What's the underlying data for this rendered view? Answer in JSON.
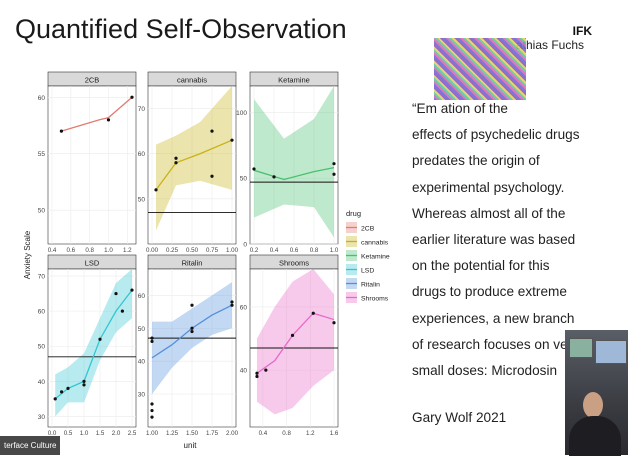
{
  "slide": {
    "title": "Quantified Self-Observation",
    "org": "IFK",
    "author": "athias Fuchs",
    "quote": "“Em ation of the\neffects of psychedelic drugs\npredates the origin of\nexperimental psychology.\nWhereas almost all of the\nearlier literature was based\non the potential for this\ndrugs to produce extreme\nexperiences, a new branch\nof research focuses on very\nsmall doses: Microdosin",
    "attribution": "Gary Wolf 2021",
    "overlay_label": "terface Culture"
  },
  "chart_data": {
    "type": "line",
    "xlabel": "unit",
    "ylabel": "Anxiety Scale",
    "legend": {
      "title": "drug",
      "position": "right",
      "entries": [
        "2CB",
        "cannabis",
        "Ketamine",
        "LSD",
        "Ritalin",
        "Shrooms"
      ]
    },
    "panels": [
      {
        "name": "2CB",
        "color": "#e27a72",
        "xlim": [
          0.4,
          1.25
        ],
        "ylim": [
          47,
          61
        ],
        "xticks": [
          "0.4",
          "0.6",
          "0.8",
          "1.0",
          "1.2"
        ],
        "yticks": [
          "50",
          "55",
          "60"
        ],
        "points": [
          [
            0.5,
            57
          ],
          [
            1.0,
            58
          ],
          [
            1.25,
            60
          ]
        ],
        "line": [
          [
            0.5,
            57
          ],
          [
            0.7,
            57.5
          ],
          [
            0.9,
            58
          ],
          [
            1.0,
            58.2
          ],
          [
            1.25,
            60
          ]
        ],
        "band": null,
        "hline": null
      },
      {
        "name": "cannabis",
        "color": "#c9b215",
        "xlim": [
          0,
          1.0
        ],
        "ylim": [
          40,
          75
        ],
        "xticks": [
          "0.00",
          "0.25",
          "0.50",
          "0.75",
          "1.00"
        ],
        "yticks": [
          "50",
          "60",
          "70"
        ],
        "points": [
          [
            0.05,
            52
          ],
          [
            0.3,
            58
          ],
          [
            0.3,
            59
          ],
          [
            0.75,
            65
          ],
          [
            0.75,
            55
          ],
          [
            1.0,
            63
          ]
        ],
        "line": [
          [
            0.05,
            52
          ],
          [
            0.3,
            58
          ],
          [
            0.6,
            60
          ],
          [
            1.0,
            63
          ]
        ],
        "band": [
          [
            0.05,
            43,
            62
          ],
          [
            0.3,
            53,
            64
          ],
          [
            0.6,
            54,
            67
          ],
          [
            1.0,
            52,
            75
          ]
        ],
        "hline": 47
      },
      {
        "name": "Ketamine",
        "color": "#49c06d",
        "xlim": [
          0.2,
          1.0
        ],
        "ylim": [
          0,
          120
        ],
        "xticks": [
          "0.2",
          "0.4",
          "0.6",
          "0.8",
          "1.0"
        ],
        "yticks": [
          "0",
          "50",
          "100"
        ],
        "points": [
          [
            0.2,
            57
          ],
          [
            0.4,
            51
          ],
          [
            1.0,
            61
          ],
          [
            1.0,
            53
          ]
        ],
        "line": [
          [
            0.2,
            56
          ],
          [
            0.5,
            49
          ],
          [
            0.8,
            55
          ],
          [
            1.0,
            58
          ]
        ],
        "band": [
          [
            0.2,
            20,
            110
          ],
          [
            0.5,
            30,
            80
          ],
          [
            0.8,
            28,
            95
          ],
          [
            1.0,
            5,
            120
          ]
        ],
        "hline": 47
      },
      {
        "name": "LSD",
        "color": "#33c6d2",
        "xlim": [
          0,
          2.5
        ],
        "ylim": [
          27,
          72
        ],
        "xticks": [
          "0.0",
          "0.5",
          "1.0",
          "1.5",
          "2.0",
          "2.5"
        ],
        "yticks": [
          "30",
          "40",
          "50",
          "60",
          "70"
        ],
        "points": [
          [
            0.1,
            35
          ],
          [
            0.3,
            37
          ],
          [
            0.5,
            38
          ],
          [
            1.0,
            40
          ],
          [
            1.0,
            39
          ],
          [
            1.5,
            52
          ],
          [
            2.0,
            65
          ],
          [
            2.2,
            60
          ],
          [
            2.5,
            66
          ]
        ],
        "line": [
          [
            0.1,
            35
          ],
          [
            0.5,
            38
          ],
          [
            1.0,
            40
          ],
          [
            1.5,
            52
          ],
          [
            2.0,
            60
          ],
          [
            2.5,
            66
          ]
        ],
        "band": [
          [
            0.1,
            30,
            42
          ],
          [
            0.5,
            34,
            44
          ],
          [
            1.0,
            34,
            48
          ],
          [
            1.5,
            46,
            58
          ],
          [
            2.0,
            54,
            68
          ],
          [
            2.5,
            58,
            72
          ]
        ],
        "hline": 47
      },
      {
        "name": "Ritalin",
        "color": "#5390d9",
        "xlim": [
          1.0,
          2.0
        ],
        "ylim": [
          20,
          68
        ],
        "xticks": [
          "1.00",
          "1.25",
          "1.50",
          "1.75",
          "2.00"
        ],
        "yticks": [
          "30",
          "40",
          "50",
          "60"
        ],
        "points": [
          [
            1.0,
            47
          ],
          [
            1.0,
            46
          ],
          [
            1.0,
            27
          ],
          [
            1.0,
            25
          ],
          [
            1.0,
            23
          ],
          [
            1.5,
            57
          ],
          [
            1.5,
            50
          ],
          [
            1.5,
            49
          ],
          [
            2.0,
            57
          ],
          [
            2.0,
            58
          ]
        ],
        "line": [
          [
            1.0,
            41
          ],
          [
            1.25,
            45
          ],
          [
            1.5,
            50
          ],
          [
            1.75,
            54
          ],
          [
            2.0,
            57
          ]
        ],
        "band": [
          [
            1.0,
            30,
            52
          ],
          [
            1.25,
            38,
            52
          ],
          [
            1.5,
            44,
            56
          ],
          [
            1.75,
            48,
            60
          ],
          [
            2.0,
            50,
            64
          ]
        ],
        "hline": 47
      },
      {
        "name": "Shrooms",
        "color": "#e868c8",
        "xlim": [
          0.25,
          1.6
        ],
        "ylim": [
          22,
          72
        ],
        "xticks": [
          "0.4",
          "0.8",
          "1.2",
          "1.6"
        ],
        "yticks": [
          "40",
          "60"
        ],
        "points": [
          [
            0.3,
            39
          ],
          [
            0.3,
            38
          ],
          [
            0.45,
            40
          ],
          [
            0.9,
            51
          ],
          [
            1.25,
            58
          ],
          [
            1.6,
            55
          ]
        ],
        "line": [
          [
            0.3,
            39
          ],
          [
            0.6,
            43
          ],
          [
            0.9,
            51
          ],
          [
            1.25,
            58
          ],
          [
            1.6,
            56
          ]
        ],
        "band": [
          [
            0.3,
            30,
            50
          ],
          [
            0.6,
            26,
            60
          ],
          [
            0.9,
            28,
            68
          ],
          [
            1.25,
            35,
            72
          ],
          [
            1.6,
            40,
            64
          ]
        ],
        "hline": 47
      }
    ]
  }
}
